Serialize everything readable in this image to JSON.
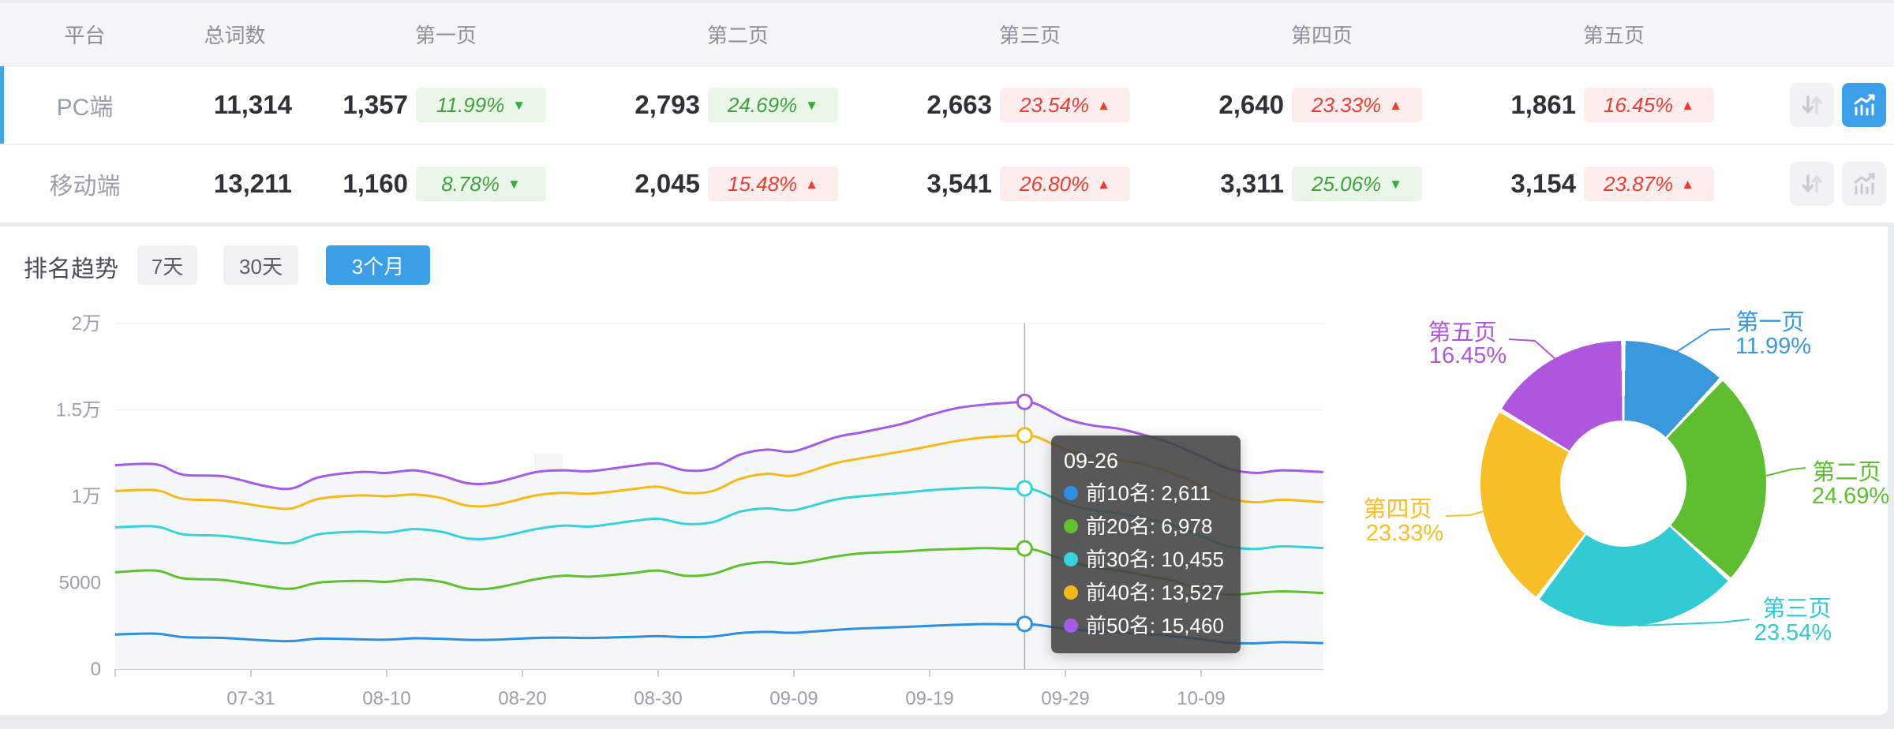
{
  "table": {
    "headers": [
      "平台",
      "总词数",
      "第一页",
      "第二页",
      "第三页",
      "第四页",
      "第五页"
    ],
    "rows": [
      {
        "platform": "PC端",
        "total": "11,314",
        "selected": true,
        "pages": [
          {
            "count": "1,357",
            "pct": "11.99%",
            "arrow": "▼",
            "tone": "green"
          },
          {
            "count": "2,793",
            "pct": "24.69%",
            "arrow": "▼",
            "tone": "green"
          },
          {
            "count": "2,663",
            "pct": "23.54%",
            "arrow": "▲",
            "tone": "red"
          },
          {
            "count": "2,640",
            "pct": "23.33%",
            "arrow": "▲",
            "tone": "red"
          },
          {
            "count": "1,861",
            "pct": "16.45%",
            "arrow": "▲",
            "tone": "red"
          }
        ],
        "sort_active": false,
        "chart_active": true
      },
      {
        "platform": "移动端",
        "total": "13,211",
        "selected": false,
        "pages": [
          {
            "count": "1,160",
            "pct": "8.78%",
            "arrow": "▼",
            "tone": "green"
          },
          {
            "count": "2,045",
            "pct": "15.48%",
            "arrow": "▲",
            "tone": "red"
          },
          {
            "count": "3,541",
            "pct": "26.80%",
            "arrow": "▲",
            "tone": "red"
          },
          {
            "count": "3,311",
            "pct": "25.06%",
            "arrow": "▼",
            "tone": "green"
          },
          {
            "count": "3,154",
            "pct": "23.87%",
            "arrow": "▲",
            "tone": "red"
          }
        ],
        "sort_active": false,
        "chart_active": false
      }
    ]
  },
  "trend": {
    "title": "排名趋势",
    "tabs": [
      {
        "label": "7天",
        "active": false
      },
      {
        "label": "30天",
        "active": false
      },
      {
        "label": "3个月",
        "active": true
      }
    ]
  },
  "watermark": {
    "text": "爱站网"
  },
  "tooltip": {
    "date": "09-26",
    "rows": [
      {
        "label": "前10名",
        "value": "2,611",
        "color": "#2E8FE0"
      },
      {
        "label": "前20名",
        "value": "6,978",
        "color": "#5FC030"
      },
      {
        "label": "前30名",
        "value": "10,455",
        "color": "#36D3DC"
      },
      {
        "label": "前40名",
        "value": "13,527",
        "color": "#F5BA18"
      },
      {
        "label": "前50名",
        "value": "15,460",
        "color": "#A55CE5"
      }
    ]
  },
  "chart_data": [
    {
      "type": "line",
      "title": "排名趋势",
      "x_axis": {
        "start_date": "07-21",
        "total_days": 89,
        "tick_days": [
          10,
          20,
          30,
          40,
          50,
          60,
          70,
          80
        ],
        "tick_labels": [
          "07-31",
          "08-10",
          "08-20",
          "08-30",
          "09-09",
          "09-19",
          "09-29",
          "10-09"
        ]
      },
      "y_axis": {
        "min": 0,
        "max": 20000,
        "tick_values": [
          0,
          5000,
          10000,
          15000,
          20000
        ],
        "tick_labels": [
          "0",
          "5000",
          "1万",
          "1.5万",
          "2万"
        ]
      },
      "grid": true,
      "legend_position": "none",
      "highlight": {
        "date": "09-26",
        "day": 67
      },
      "series": [
        {
          "name": "前10名",
          "color": "#2E8FE0",
          "points": [
            [
              0,
              2000
            ],
            [
              3,
              2050
            ],
            [
              5,
              1850
            ],
            [
              8,
              1800
            ],
            [
              11,
              1660
            ],
            [
              13,
              1620
            ],
            [
              15,
              1760
            ],
            [
              18,
              1720
            ],
            [
              20,
              1700
            ],
            [
              22,
              1780
            ],
            [
              24,
              1750
            ],
            [
              26,
              1690
            ],
            [
              28,
              1700
            ],
            [
              31,
              1800
            ],
            [
              33,
              1820
            ],
            [
              35,
              1800
            ],
            [
              38,
              1860
            ],
            [
              40,
              1900
            ],
            [
              42,
              1850
            ],
            [
              44,
              1880
            ],
            [
              46,
              2080
            ],
            [
              48,
              2150
            ],
            [
              50,
              2100
            ],
            [
              53,
              2260
            ],
            [
              55,
              2350
            ],
            [
              58,
              2430
            ],
            [
              60,
              2500
            ],
            [
              62,
              2560
            ],
            [
              64,
              2600
            ],
            [
              66,
              2590
            ],
            [
              67,
              2611
            ],
            [
              68,
              2550
            ],
            [
              70,
              2330
            ],
            [
              72,
              2200
            ],
            [
              74,
              2120
            ],
            [
              76,
              2020
            ],
            [
              78,
              1900
            ],
            [
              80,
              1720
            ],
            [
              82,
              1520
            ],
            [
              84,
              1490
            ],
            [
              86,
              1560
            ],
            [
              89,
              1500
            ]
          ]
        },
        {
          "name": "前20名",
          "color": "#5FC030",
          "points": [
            [
              0,
              5600
            ],
            [
              3,
              5700
            ],
            [
              5,
              5250
            ],
            [
              8,
              5150
            ],
            [
              11,
              4800
            ],
            [
              13,
              4650
            ],
            [
              15,
              5000
            ],
            [
              18,
              5100
            ],
            [
              20,
              5050
            ],
            [
              22,
              5200
            ],
            [
              24,
              5050
            ],
            [
              26,
              4650
            ],
            [
              28,
              4700
            ],
            [
              31,
              5200
            ],
            [
              33,
              5400
            ],
            [
              35,
              5350
            ],
            [
              38,
              5550
            ],
            [
              40,
              5700
            ],
            [
              42,
              5400
            ],
            [
              44,
              5500
            ],
            [
              46,
              6000
            ],
            [
              48,
              6200
            ],
            [
              50,
              6100
            ],
            [
              53,
              6500
            ],
            [
              55,
              6700
            ],
            [
              58,
              6800
            ],
            [
              60,
              6900
            ],
            [
              62,
              6950
            ],
            [
              64,
              7000
            ],
            [
              66,
              6960
            ],
            [
              67,
              6978
            ],
            [
              68,
              6850
            ],
            [
              70,
              6300
            ],
            [
              72,
              5900
            ],
            [
              74,
              5700
            ],
            [
              76,
              5400
            ],
            [
              78,
              5100
            ],
            [
              80,
              4600
            ],
            [
              82,
              4300
            ],
            [
              84,
              4400
            ],
            [
              86,
              4500
            ],
            [
              89,
              4400
            ]
          ]
        },
        {
          "name": "前30名",
          "color": "#36D3DC",
          "points": [
            [
              0,
              8200
            ],
            [
              3,
              8250
            ],
            [
              5,
              7800
            ],
            [
              8,
              7700
            ],
            [
              11,
              7400
            ],
            [
              13,
              7300
            ],
            [
              15,
              7800
            ],
            [
              18,
              7950
            ],
            [
              20,
              7900
            ],
            [
              22,
              8100
            ],
            [
              24,
              7950
            ],
            [
              26,
              7550
            ],
            [
              28,
              7600
            ],
            [
              31,
              8100
            ],
            [
              33,
              8300
            ],
            [
              35,
              8250
            ],
            [
              38,
              8550
            ],
            [
              40,
              8700
            ],
            [
              42,
              8400
            ],
            [
              44,
              8500
            ],
            [
              46,
              9100
            ],
            [
              48,
              9300
            ],
            [
              50,
              9200
            ],
            [
              53,
              9800
            ],
            [
              55,
              10000
            ],
            [
              58,
              10200
            ],
            [
              60,
              10350
            ],
            [
              62,
              10450
            ],
            [
              64,
              10500
            ],
            [
              66,
              10430
            ],
            [
              67,
              10455
            ],
            [
              68,
              10300
            ],
            [
              70,
              9600
            ],
            [
              72,
              9200
            ],
            [
              74,
              9000
            ],
            [
              76,
              8700
            ],
            [
              78,
              8300
            ],
            [
              80,
              7700
            ],
            [
              82,
              7100
            ],
            [
              84,
              6950
            ],
            [
              86,
              7100
            ],
            [
              89,
              7000
            ]
          ]
        },
        {
          "name": "前40名",
          "color": "#F5BA18",
          "points": [
            [
              0,
              10300
            ],
            [
              3,
              10350
            ],
            [
              5,
              9850
            ],
            [
              8,
              9750
            ],
            [
              11,
              9400
            ],
            [
              13,
              9300
            ],
            [
              15,
              9850
            ],
            [
              18,
              10050
            ],
            [
              20,
              10000
            ],
            [
              22,
              10100
            ],
            [
              24,
              9900
            ],
            [
              26,
              9450
            ],
            [
              28,
              9500
            ],
            [
              31,
              10050
            ],
            [
              33,
              10200
            ],
            [
              35,
              10150
            ],
            [
              38,
              10400
            ],
            [
              40,
              10550
            ],
            [
              42,
              10200
            ],
            [
              44,
              10300
            ],
            [
              46,
              11000
            ],
            [
              48,
              11300
            ],
            [
              50,
              11200
            ],
            [
              53,
              11900
            ],
            [
              55,
              12200
            ],
            [
              58,
              12600
            ],
            [
              60,
              12900
            ],
            [
              62,
              13200
            ],
            [
              64,
              13400
            ],
            [
              66,
              13500
            ],
            [
              67,
              13527
            ],
            [
              68,
              13400
            ],
            [
              70,
              12700
            ],
            [
              72,
              12300
            ],
            [
              74,
              12100
            ],
            [
              76,
              11800
            ],
            [
              78,
              11300
            ],
            [
              80,
              10600
            ],
            [
              82,
              9900
            ],
            [
              84,
              9650
            ],
            [
              86,
              9800
            ],
            [
              89,
              9650
            ]
          ]
        },
        {
          "name": "前50名",
          "color": "#A55CE5",
          "area_fill": "#f4f6f8",
          "points": [
            [
              0,
              11800
            ],
            [
              3,
              11850
            ],
            [
              5,
              11250
            ],
            [
              8,
              11150
            ],
            [
              11,
              10600
            ],
            [
              13,
              10450
            ],
            [
              15,
              11100
            ],
            [
              18,
              11400
            ],
            [
              20,
              11350
            ],
            [
              22,
              11500
            ],
            [
              24,
              11200
            ],
            [
              26,
              10750
            ],
            [
              28,
              10800
            ],
            [
              31,
              11400
            ],
            [
              33,
              11500
            ],
            [
              35,
              11450
            ],
            [
              38,
              11750
            ],
            [
              40,
              11900
            ],
            [
              42,
              11500
            ],
            [
              44,
              11600
            ],
            [
              46,
              12400
            ],
            [
              48,
              12700
            ],
            [
              50,
              12600
            ],
            [
              53,
              13400
            ],
            [
              55,
              13700
            ],
            [
              58,
              14200
            ],
            [
              60,
              14700
            ],
            [
              62,
              15100
            ],
            [
              64,
              15300
            ],
            [
              66,
              15420
            ],
            [
              67,
              15460
            ],
            [
              68,
              15300
            ],
            [
              70,
              14500
            ],
            [
              72,
              14100
            ],
            [
              74,
              13900
            ],
            [
              76,
              13500
            ],
            [
              78,
              13000
            ],
            [
              80,
              12300
            ],
            [
              82,
              11600
            ],
            [
              84,
              11350
            ],
            [
              86,
              11500
            ],
            [
              89,
              11400
            ]
          ]
        }
      ]
    },
    {
      "type": "pie",
      "donut": true,
      "labels": [
        "第一页",
        "第二页",
        "第三页",
        "第四页",
        "第五页"
      ],
      "values": [
        11.99,
        24.69,
        23.54,
        23.33,
        16.45
      ],
      "pct_labels": [
        "11.99%",
        "24.69%",
        "23.54%",
        "23.33%",
        "16.45%"
      ],
      "colors": [
        "#3A99DC",
        "#5EBE30",
        "#32CBD4",
        "#F7BE26",
        "#AE56DE"
      ],
      "slice_gap_pct": 0.5,
      "unit": "%"
    }
  ]
}
